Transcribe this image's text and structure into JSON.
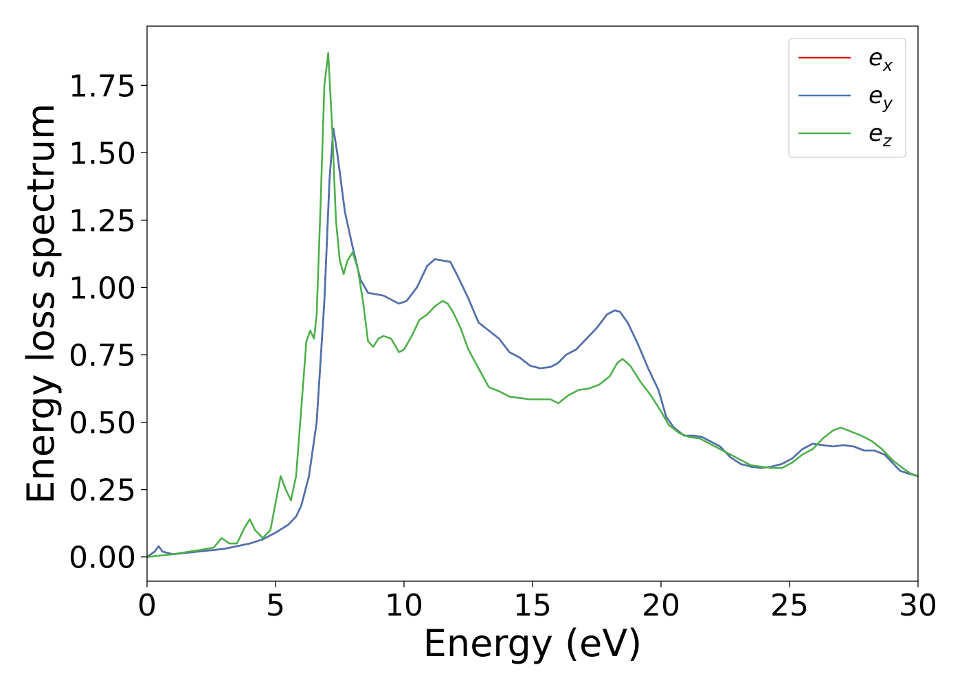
{
  "chart_data": {
    "type": "line",
    "title": "",
    "xlabel": "Energy (eV)",
    "ylabel": "Energy loss spectrum",
    "xlim": [
      0,
      30
    ],
    "ylim": [
      -0.09,
      1.97
    ],
    "xticks": [
      0,
      5,
      10,
      15,
      20,
      25,
      30
    ],
    "xtick_labels": [
      "0",
      "5",
      "10",
      "15",
      "20",
      "25",
      "30"
    ],
    "yticks": [
      0.0,
      0.25,
      0.5,
      0.75,
      1.0,
      1.25,
      1.5,
      1.75
    ],
    "ytick_labels": [
      "0.00",
      "0.25",
      "0.50",
      "0.75",
      "1.00",
      "1.25",
      "1.50",
      "1.75"
    ],
    "grid": false,
    "legend_position": "top-right",
    "series": [
      {
        "name": "e_x",
        "label_main": "e",
        "label_sub": "x",
        "color": "#e41a1c",
        "x": [
          0,
          0.3,
          0.45,
          0.6,
          1.0,
          2.0,
          3.0,
          4.0,
          4.5,
          5.0,
          5.5,
          5.8,
          6.0,
          6.3,
          6.6,
          6.9,
          7.1,
          7.25,
          7.4,
          7.7,
          8.0,
          8.3,
          8.6,
          8.9,
          9.2,
          9.5,
          9.8,
          10.1,
          10.5,
          10.9,
          11.2,
          11.5,
          11.8,
          12.1,
          12.5,
          12.9,
          13.3,
          13.7,
          14.1,
          14.5,
          14.9,
          15.3,
          15.7,
          16.0,
          16.3,
          16.7,
          17.1,
          17.5,
          17.9,
          18.2,
          18.4,
          18.7,
          19.1,
          19.5,
          19.9,
          20.2,
          20.5,
          20.9,
          21.3,
          21.6,
          21.9,
          22.3,
          22.7,
          23.1,
          23.5,
          23.9,
          24.3,
          24.7,
          25.1,
          25.5,
          25.9,
          26.3,
          26.7,
          27.1,
          27.5,
          27.9,
          28.3,
          28.7,
          29.0,
          29.3,
          29.6,
          30.0
        ],
        "y": [
          0.0,
          0.02,
          0.04,
          0.02,
          0.01,
          0.02,
          0.03,
          0.05,
          0.065,
          0.09,
          0.12,
          0.15,
          0.19,
          0.3,
          0.5,
          0.95,
          1.4,
          1.59,
          1.5,
          1.28,
          1.15,
          1.03,
          0.98,
          0.975,
          0.97,
          0.955,
          0.94,
          0.95,
          1.0,
          1.08,
          1.105,
          1.1,
          1.095,
          1.04,
          0.96,
          0.87,
          0.84,
          0.81,
          0.76,
          0.74,
          0.71,
          0.7,
          0.705,
          0.72,
          0.75,
          0.77,
          0.81,
          0.85,
          0.9,
          0.915,
          0.91,
          0.87,
          0.79,
          0.7,
          0.62,
          0.52,
          0.48,
          0.45,
          0.45,
          0.445,
          0.43,
          0.41,
          0.37,
          0.345,
          0.335,
          0.33,
          0.335,
          0.345,
          0.365,
          0.4,
          0.42,
          0.415,
          0.41,
          0.415,
          0.41,
          0.395,
          0.395,
          0.38,
          0.35,
          0.32,
          0.31,
          0.3
        ]
      },
      {
        "name": "e_y",
        "label_main": "e",
        "label_sub": "y",
        "color": "#4a74b0",
        "x": [
          0,
          0.3,
          0.45,
          0.6,
          1.0,
          2.0,
          3.0,
          4.0,
          4.5,
          5.0,
          5.5,
          5.8,
          6.0,
          6.3,
          6.6,
          6.9,
          7.1,
          7.25,
          7.4,
          7.7,
          8.0,
          8.3,
          8.6,
          8.9,
          9.2,
          9.5,
          9.8,
          10.1,
          10.5,
          10.9,
          11.2,
          11.5,
          11.8,
          12.1,
          12.5,
          12.9,
          13.3,
          13.7,
          14.1,
          14.5,
          14.9,
          15.3,
          15.7,
          16.0,
          16.3,
          16.7,
          17.1,
          17.5,
          17.9,
          18.2,
          18.4,
          18.7,
          19.1,
          19.5,
          19.9,
          20.2,
          20.5,
          20.9,
          21.3,
          21.6,
          21.9,
          22.3,
          22.7,
          23.1,
          23.5,
          23.9,
          24.3,
          24.7,
          25.1,
          25.5,
          25.9,
          26.3,
          26.7,
          27.1,
          27.5,
          27.9,
          28.3,
          28.7,
          29.0,
          29.3,
          29.6,
          30.0
        ],
        "y": [
          0.0,
          0.02,
          0.04,
          0.02,
          0.01,
          0.02,
          0.03,
          0.05,
          0.065,
          0.09,
          0.12,
          0.15,
          0.19,
          0.3,
          0.5,
          0.95,
          1.4,
          1.59,
          1.5,
          1.28,
          1.15,
          1.03,
          0.98,
          0.975,
          0.97,
          0.955,
          0.94,
          0.95,
          1.0,
          1.08,
          1.105,
          1.1,
          1.095,
          1.04,
          0.96,
          0.87,
          0.84,
          0.81,
          0.76,
          0.74,
          0.71,
          0.7,
          0.705,
          0.72,
          0.75,
          0.77,
          0.81,
          0.85,
          0.9,
          0.915,
          0.91,
          0.87,
          0.79,
          0.7,
          0.62,
          0.52,
          0.48,
          0.45,
          0.45,
          0.445,
          0.43,
          0.41,
          0.37,
          0.345,
          0.335,
          0.33,
          0.335,
          0.345,
          0.365,
          0.4,
          0.42,
          0.415,
          0.41,
          0.415,
          0.41,
          0.395,
          0.395,
          0.38,
          0.35,
          0.32,
          0.31,
          0.3
        ]
      },
      {
        "name": "e_z",
        "label_main": "e",
        "label_sub": "z",
        "color": "#4daf4a",
        "x": [
          0,
          1.0,
          2.0,
          2.6,
          2.9,
          3.2,
          3.5,
          3.8,
          4.0,
          4.2,
          4.5,
          4.8,
          5.0,
          5.2,
          5.4,
          5.6,
          5.8,
          6.0,
          6.2,
          6.35,
          6.5,
          6.6,
          6.75,
          6.9,
          7.05,
          7.2,
          7.35,
          7.5,
          7.65,
          7.8,
          8.0,
          8.2,
          8.4,
          8.6,
          8.8,
          9.0,
          9.2,
          9.5,
          9.8,
          10.0,
          10.3,
          10.6,
          10.9,
          11.2,
          11.5,
          11.7,
          11.9,
          12.2,
          12.5,
          12.9,
          13.3,
          13.7,
          14.1,
          14.5,
          14.9,
          15.3,
          15.7,
          16.0,
          16.4,
          16.8,
          17.2,
          17.6,
          18.0,
          18.3,
          18.5,
          18.8,
          19.2,
          19.6,
          20.0,
          20.3,
          20.7,
          21.1,
          21.5,
          21.9,
          22.3,
          22.7,
          23.1,
          23.5,
          23.9,
          24.3,
          24.7,
          25.1,
          25.5,
          25.9,
          26.3,
          26.7,
          27.0,
          27.4,
          27.8,
          28.2,
          28.6,
          29.0,
          29.4,
          29.7,
          30.0
        ],
        "y": [
          0.0,
          0.01,
          0.025,
          0.035,
          0.07,
          0.05,
          0.05,
          0.11,
          0.14,
          0.1,
          0.07,
          0.1,
          0.2,
          0.3,
          0.25,
          0.21,
          0.3,
          0.55,
          0.8,
          0.84,
          0.81,
          0.9,
          1.3,
          1.75,
          1.87,
          1.6,
          1.25,
          1.1,
          1.05,
          1.1,
          1.13,
          1.07,
          0.95,
          0.8,
          0.78,
          0.81,
          0.82,
          0.81,
          0.76,
          0.77,
          0.82,
          0.88,
          0.9,
          0.93,
          0.95,
          0.94,
          0.91,
          0.85,
          0.77,
          0.7,
          0.63,
          0.615,
          0.595,
          0.59,
          0.585,
          0.585,
          0.585,
          0.57,
          0.6,
          0.62,
          0.625,
          0.64,
          0.67,
          0.72,
          0.735,
          0.71,
          0.65,
          0.6,
          0.54,
          0.49,
          0.46,
          0.445,
          0.44,
          0.42,
          0.4,
          0.38,
          0.36,
          0.34,
          0.335,
          0.33,
          0.33,
          0.35,
          0.38,
          0.4,
          0.44,
          0.47,
          0.48,
          0.465,
          0.45,
          0.43,
          0.4,
          0.36,
          0.33,
          0.31,
          0.3
        ]
      }
    ]
  }
}
